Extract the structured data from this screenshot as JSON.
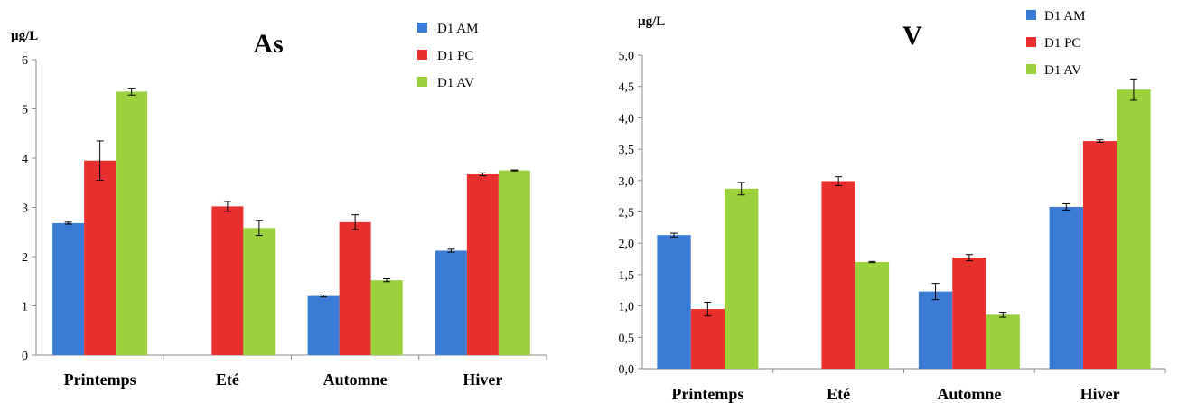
{
  "colors": {
    "D1 AM": "#3a7bd5",
    "D1 PC": "#e8312f",
    "D1 AV": "#9bd23c",
    "axis": "#888888",
    "errorbar": "#000000"
  },
  "chart_data": [
    {
      "type": "bar",
      "title": "As",
      "ylabel": "µg/L",
      "xlabel": "",
      "categories": [
        "Printemps",
        "Eté",
        "Automne",
        "Hiver"
      ],
      "ylim": [
        0,
        6
      ],
      "yticks": [
        0,
        1,
        2,
        3,
        4,
        5,
        6
      ],
      "ytick_labels": [
        "0",
        "1",
        "2",
        "3",
        "4",
        "5",
        "6"
      ],
      "grid": false,
      "legend": "top-right",
      "series": [
        {
          "name": "D1 AM",
          "values": [
            2.68,
            null,
            1.2,
            2.12
          ],
          "errors": [
            0.02,
            null,
            0.02,
            0.03
          ]
        },
        {
          "name": "D1 PC",
          "values": [
            3.95,
            3.02,
            2.7,
            3.67
          ],
          "errors": [
            0.4,
            0.1,
            0.15,
            0.03
          ]
        },
        {
          "name": "D1 AV",
          "values": [
            5.35,
            2.58,
            1.52,
            3.75
          ],
          "errors": [
            0.07,
            0.15,
            0.03,
            0.01
          ]
        }
      ]
    },
    {
      "type": "bar",
      "title": "V",
      "ylabel": "µg/L",
      "xlabel": "",
      "categories": [
        "Printemps",
        "Eté",
        "Automne",
        "Hiver"
      ],
      "ylim": [
        0,
        5
      ],
      "yticks": [
        0,
        0.5,
        1,
        1.5,
        2,
        2.5,
        3,
        3.5,
        4,
        4.5,
        5
      ],
      "ytick_labels": [
        "0,0",
        "0,5",
        "1,0",
        "1,5",
        "2,0",
        "2,5",
        "3,0",
        "3,5",
        "4,0",
        "4,5",
        "5,0"
      ],
      "grid": false,
      "legend": "top-right",
      "series": [
        {
          "name": "D1 AM",
          "values": [
            2.13,
            0.0,
            1.23,
            2.58
          ],
          "errors": [
            0.03,
            null,
            0.13,
            0.05
          ]
        },
        {
          "name": "D1 PC",
          "values": [
            0.95,
            2.99,
            1.77,
            3.63
          ],
          "errors": [
            0.11,
            0.07,
            0.05,
            0.02
          ]
        },
        {
          "name": "D1 AV",
          "values": [
            2.87,
            1.7,
            0.86,
            4.45
          ],
          "errors": [
            0.1,
            0.01,
            0.04,
            0.17
          ]
        }
      ]
    }
  ]
}
